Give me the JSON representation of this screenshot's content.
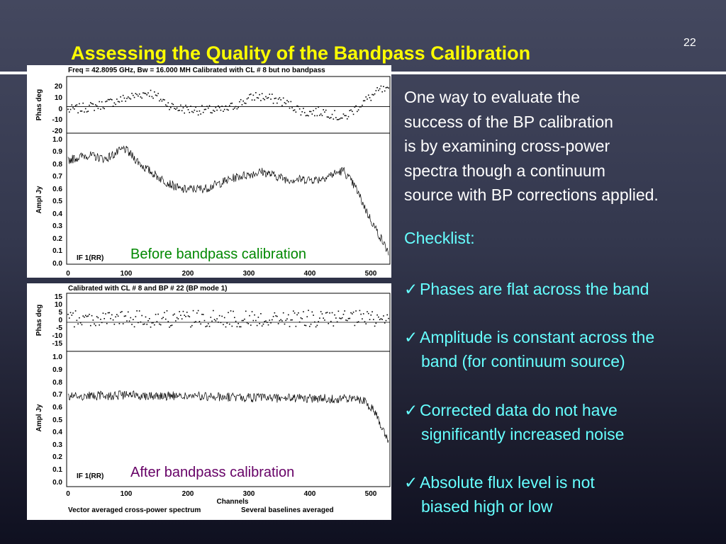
{
  "slide": {
    "number": "22",
    "title": "Assessing the Quality of the Bandpass Calibration",
    "colors": {
      "title": "#ffff00",
      "text": "#ffffff",
      "accent": "#66ffff",
      "before_caption": "#008800",
      "after_caption": "#660066"
    }
  },
  "top_plot": {
    "header": "Freq = 42.8095 GHz, Bw = 16.000 MH   Calibrated with CL # 8 but no bandpass",
    "phase_ylabel": "Phas deg",
    "amp_ylabel": "Ampl Jy",
    "if_label": "IF 1(RR)",
    "caption": "Before bandpass calibration",
    "phase_ticks": [
      "20",
      "10",
      "0",
      "-10",
      "-20"
    ],
    "amp_ticks": [
      "1.0",
      "0.9",
      "0.8",
      "0.7",
      "0.6",
      "0.5",
      "0.4",
      "0.3",
      "0.2",
      "0.1",
      "0.0"
    ],
    "x_ticks": [
      "0",
      "100",
      "200",
      "300",
      "400",
      "500"
    ]
  },
  "bottom_plot": {
    "header": "Calibrated with CL # 8 and BP # 22 (BP mode 1)",
    "phase_ylabel": "Phas deg",
    "amp_ylabel": "Ampl Jy",
    "if_label": "IF 1(RR)",
    "caption": "After bandpass calibration",
    "phase_ticks": [
      "15",
      "10",
      "5",
      "0",
      "-5",
      "-10",
      "-15"
    ],
    "amp_ticks": [
      "1.0",
      "0.9",
      "0.8",
      "0.7",
      "0.6",
      "0.5",
      "0.4",
      "0.3",
      "0.2",
      "0.1",
      "0.0"
    ],
    "x_ticks": [
      "0",
      "100",
      "200",
      "300",
      "400",
      "500"
    ],
    "xlabel": "Channels",
    "footer_left": "Vector averaged cross-power spectrum",
    "footer_right": "Several baselines averaged"
  },
  "body": {
    "lines": [
      "One way to evaluate the",
      "success of the BP calibration",
      "is by examining cross-power",
      "spectra though a continuum",
      "source with BP corrections applied."
    ],
    "checklist_heading": "Checklist:",
    "check_mark": "✓",
    "items": [
      {
        "line1": "Phases are flat across the band",
        "line2": ""
      },
      {
        "line1": "Amplitude is constant across the",
        "line2": "band (for continuum source)"
      },
      {
        "line1": "Corrected data do not have",
        "line2": "significantly increased noise"
      },
      {
        "line1": "Absolute flux level is not",
        "line2": "biased high or low"
      }
    ]
  },
  "chart_data": [
    {
      "type": "line",
      "title": "Before bandpass calibration",
      "xlabel": "",
      "xlim": [
        0,
        512
      ],
      "series": [
        {
          "name": "Phas deg",
          "ylim": [
            -22,
            25
          ],
          "shape_x": [
            0,
            50,
            100,
            130,
            170,
            210,
            250,
            300,
            340,
            380,
            410,
            440,
            470,
            500,
            512
          ],
          "shape_y": [
            -3,
            1,
            8,
            12,
            -1,
            -3,
            -3,
            9,
            5,
            -5,
            -4,
            -10,
            3,
            14,
            12
          ],
          "noise": 4
        },
        {
          "name": "Ampl Jy",
          "ylim": [
            -0.02,
            1.0
          ],
          "shape_x": [
            0,
            30,
            60,
            90,
            120,
            150,
            180,
            220,
            270,
            310,
            350,
            400,
            440,
            460,
            480,
            500,
            512
          ],
          "shape_y": [
            0.79,
            0.83,
            0.8,
            0.88,
            0.74,
            0.64,
            0.56,
            0.57,
            0.66,
            0.7,
            0.64,
            0.64,
            0.71,
            0.57,
            0.36,
            0.18,
            0.07
          ],
          "noise": 0.035
        }
      ]
    },
    {
      "type": "line",
      "title": "After bandpass calibration",
      "xlabel": "Channels",
      "xlim": [
        0,
        512
      ],
      "series": [
        {
          "name": "Phas deg",
          "ylim": [
            -17,
            17
          ],
          "shape_x": [
            0,
            512
          ],
          "shape_y": [
            2,
            2
          ],
          "noise": 5
        },
        {
          "name": "Ampl Jy",
          "ylim": [
            -0.02,
            1.0
          ],
          "shape_x": [
            0,
            100,
            300,
            470,
            490,
            500,
            512
          ],
          "shape_y": [
            0.66,
            0.67,
            0.65,
            0.64,
            0.55,
            0.45,
            0.33
          ],
          "noise": 0.035
        }
      ]
    }
  ]
}
